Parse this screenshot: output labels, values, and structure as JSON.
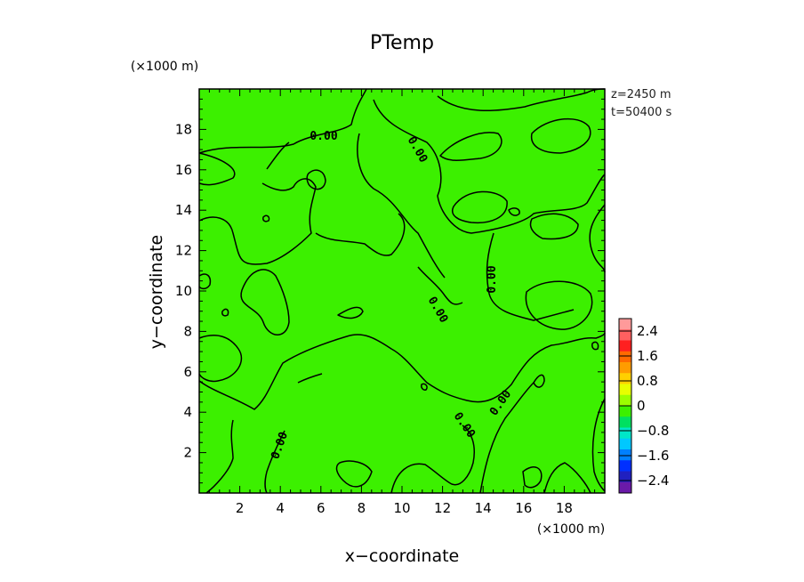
{
  "chart_data": {
    "type": "heatmap",
    "title": "PTemp",
    "xlabel": "x−coordinate",
    "ylabel": "y−coordinate",
    "x_unit": "(×1000 m)",
    "y_unit": "(×1000 m)",
    "annotations": [
      "z=2450 m",
      "t=50400 s"
    ],
    "xlim": [
      0,
      20
    ],
    "ylim": [
      0,
      20
    ],
    "x_ticks": [
      2,
      4,
      6,
      8,
      10,
      12,
      14,
      16,
      18
    ],
    "y_ticks": [
      2,
      4,
      6,
      8,
      10,
      12,
      14,
      16,
      18
    ],
    "x_tick_labels": [
      "2",
      "4",
      "6",
      "8",
      "10",
      "12",
      "14",
      "16",
      "18"
    ],
    "y_tick_labels": [
      "2",
      "4",
      "6",
      "8",
      "10",
      "12",
      "14",
      "16",
      "18"
    ],
    "field_color": "#3cf000",
    "contour_level": 0.0,
    "contour_labels": [
      "0.00",
      "0.00",
      "0.00",
      "0.00",
      "0.00",
      "0.00",
      "0.00"
    ],
    "colorbar": {
      "range": [
        -2.8,
        2.8
      ],
      "tick_values": [
        2.4,
        1.6,
        0.8,
        0,
        -0.8,
        -1.6,
        -2.4
      ],
      "tick_labels": [
        "2.4",
        "1.6",
        "0.8",
        "0",
        "−0.8",
        "−1.6",
        "−2.4"
      ],
      "colors": [
        "#ff9a9a",
        "#ff6060",
        "#ff2020",
        "#ff6a00",
        "#ff9c00",
        "#ffd000",
        "#e8ff00",
        "#9cff00",
        "#3cf000",
        "#00e060",
        "#00e6c8",
        "#00c8ff",
        "#0080ff",
        "#0030ff",
        "#2020c0",
        "#6a1aa8"
      ]
    }
  }
}
